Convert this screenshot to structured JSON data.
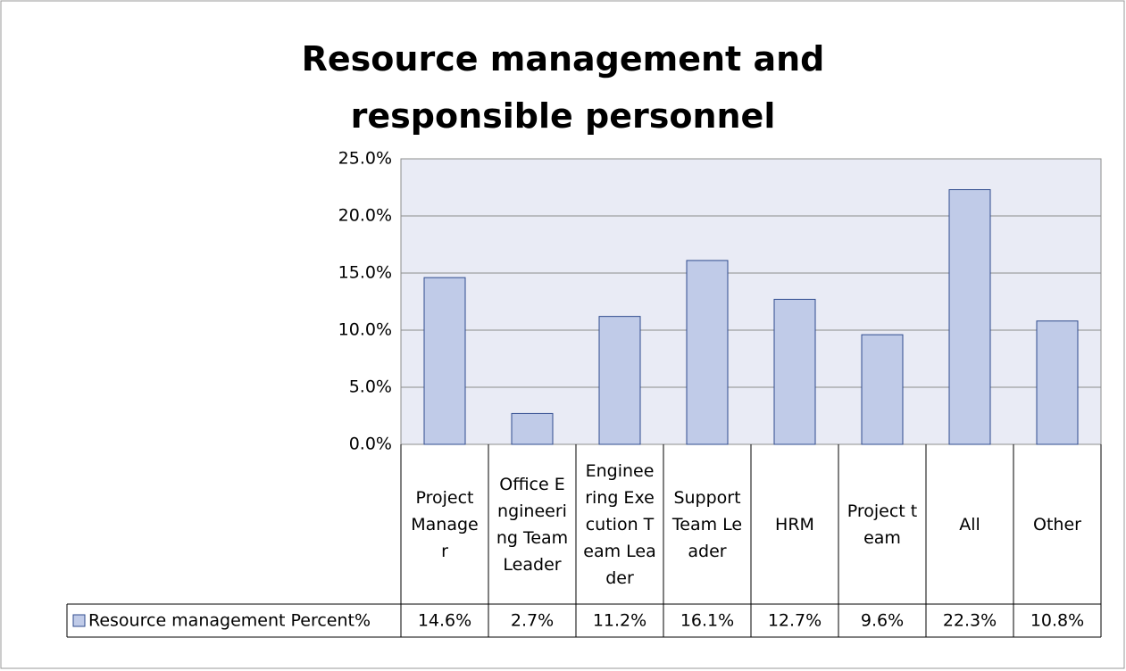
{
  "chart_data": {
    "type": "bar",
    "title": "Resource management and responsible personnel",
    "categories": [
      "Project Manager",
      "Office Engineering Team Leader",
      "Engineering Execution Team Leader",
      "Support Team Leader",
      "HRM",
      "Project team",
      "All",
      "Other"
    ],
    "series": [
      {
        "name": "Resource management Percent%",
        "color": "#c0cbe8",
        "values": [
          14.6,
          2.7,
          11.2,
          16.1,
          12.7,
          9.6,
          22.3,
          10.8
        ],
        "value_labels": [
          "14.6%",
          "2.7%",
          "11.2%",
          "16.1%",
          "12.7%",
          "9.6%",
          "22.3%",
          "10.8%"
        ]
      }
    ],
    "ylim": [
      0,
      25
    ],
    "yticks": [
      {
        "value": 0,
        "label": "0.0%"
      },
      {
        "value": 5,
        "label": "5.0%"
      },
      {
        "value": 10,
        "label": "10.0%"
      },
      {
        "value": 15,
        "label": "15.0%"
      },
      {
        "value": 20,
        "label": "20.0%"
      },
      {
        "value": 25,
        "label": "25.0%"
      }
    ],
    "grid": true
  }
}
